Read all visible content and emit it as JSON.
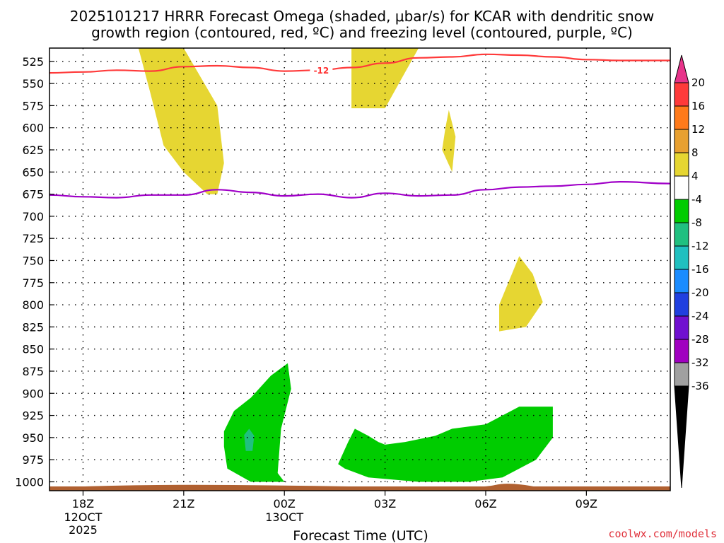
{
  "chart_data": {
    "type": "heatmap",
    "title_line1": "2025101217 HRRR Forecast Omega (shaded, μbar/s) for KCAR with dendritic snow",
    "title_line2": "growth region (contoured, red, ºC) and freezing level (contoured, purple, ºC)",
    "xlabel": "Forecast Time (UTC)",
    "credit": "coolwx.com/models",
    "x_range_hours": [
      -1,
      17.5
    ],
    "y_range_hpa": [
      510,
      1010
    ],
    "y_ticks": [
      "525",
      "550",
      "575",
      "600",
      "625",
      "650",
      "675",
      "700",
      "725",
      "750",
      "775",
      "800",
      "825",
      "850",
      "875",
      "900",
      "925",
      "950",
      "975",
      "1000"
    ],
    "x_ticks": [
      {
        "hour": 0,
        "label": "18Z",
        "sub1": "12OCT",
        "sub2": "2025"
      },
      {
        "hour": 3,
        "label": "21Z",
        "sub1": "",
        "sub2": ""
      },
      {
        "hour": 6,
        "label": "00Z",
        "sub1": "13OCT",
        "sub2": ""
      },
      {
        "hour": 9,
        "label": "03Z",
        "sub1": "",
        "sub2": ""
      },
      {
        "hour": 12,
        "label": "06Z",
        "sub1": "",
        "sub2": ""
      },
      {
        "hour": 15,
        "label": "09Z",
        "sub1": "",
        "sub2": ""
      }
    ],
    "colorbar": {
      "labels": [
        "20",
        "16",
        "12",
        "8",
        "4",
        "-4",
        "-8",
        "-12",
        "-16",
        "-20",
        "-24",
        "-28",
        "-32",
        "-36"
      ],
      "colors": [
        "#e8338a",
        "#ff3a3a",
        "#ff7a1a",
        "#e8a030",
        "#e6d632",
        "#ffffff",
        "#00cc00",
        "#20c080",
        "#20c0c0",
        "#1a8cff",
        "#2040e0",
        "#7010d0",
        "#a000c0",
        "#a0a0a0",
        "#000000"
      ]
    },
    "omega_areas": [
      {
        "name": "yellow-area-1",
        "color": "#e6d632",
        "points": [
          [
            1.65,
            510
          ],
          [
            3.0,
            510
          ],
          [
            4.0,
            575
          ],
          [
            4.2,
            640
          ],
          [
            4.0,
            675
          ],
          [
            3.7,
            675
          ],
          [
            3.0,
            650
          ],
          [
            2.4,
            620
          ],
          [
            2.0,
            560
          ],
          [
            1.65,
            510
          ]
        ]
      },
      {
        "name": "yellow-area-2",
        "color": "#e6d632",
        "points": [
          [
            8.0,
            510
          ],
          [
            10.0,
            510
          ],
          [
            9.0,
            578
          ],
          [
            8.0,
            578
          ],
          [
            8.0,
            525
          ]
        ]
      },
      {
        "name": "yellow-area-3",
        "color": "#e6d632",
        "points": [
          [
            10.9,
            580
          ],
          [
            11.1,
            610
          ],
          [
            11.0,
            650
          ],
          [
            10.7,
            625
          ],
          [
            10.8,
            600
          ]
        ]
      },
      {
        "name": "yellow-area-4",
        "color": "#e6d632",
        "points": [
          [
            12.4,
            800
          ],
          [
            13.0,
            745
          ],
          [
            13.4,
            765
          ],
          [
            13.7,
            797
          ],
          [
            13.2,
            825
          ],
          [
            12.4,
            830
          ]
        ]
      },
      {
        "name": "green-area-1",
        "color": "#00cc00",
        "points": [
          [
            4.2,
            943
          ],
          [
            4.5,
            920
          ],
          [
            5.0,
            905
          ],
          [
            5.6,
            880
          ],
          [
            6.1,
            866
          ],
          [
            6.2,
            895
          ],
          [
            5.9,
            940
          ],
          [
            5.8,
            990
          ],
          [
            6.0,
            1000
          ],
          [
            5.0,
            1000
          ],
          [
            4.3,
            985
          ],
          [
            4.2,
            960
          ]
        ]
      },
      {
        "name": "teal-area-1",
        "color": "#20c080",
        "points": [
          [
            4.8,
            947
          ],
          [
            4.95,
            940
          ],
          [
            5.1,
            948
          ],
          [
            5.05,
            965
          ],
          [
            4.85,
            965
          ]
        ]
      },
      {
        "name": "green-area-2",
        "color": "#00cc00",
        "points": [
          [
            7.6,
            980
          ],
          [
            7.9,
            955
          ],
          [
            8.1,
            940
          ],
          [
            8.5,
            948
          ],
          [
            8.8,
            955
          ],
          [
            9.0,
            958
          ],
          [
            9.6,
            955
          ],
          [
            10.5,
            948
          ],
          [
            11.0,
            940
          ],
          [
            12.0,
            935
          ],
          [
            13.0,
            915
          ],
          [
            14.0,
            915
          ],
          [
            14.0,
            950
          ],
          [
            13.5,
            975
          ],
          [
            12.5,
            995
          ],
          [
            11.5,
            1000
          ],
          [
            10.0,
            1000
          ],
          [
            8.5,
            995
          ],
          [
            7.8,
            985
          ]
        ]
      }
    ],
    "contour_12C": {
      "label": "-12",
      "points": [
        [
          -1,
          538
        ],
        [
          0,
          537
        ],
        [
          1,
          535
        ],
        [
          2,
          536
        ],
        [
          3,
          531
        ],
        [
          4,
          530
        ],
        [
          5,
          532
        ],
        [
          6,
          536
        ],
        [
          7,
          535
        ],
        [
          8,
          532
        ],
        [
          9,
          527
        ],
        [
          10,
          521
        ],
        [
          11,
          520
        ],
        [
          12,
          517
        ],
        [
          13,
          518
        ],
        [
          14,
          520
        ],
        [
          15,
          523
        ],
        [
          16,
          524
        ],
        [
          17.5,
          524
        ]
      ]
    },
    "freezing_level": {
      "points": [
        [
          -1,
          676
        ],
        [
          0,
          678
        ],
        [
          1,
          679
        ],
        [
          2,
          676
        ],
        [
          3,
          676
        ],
        [
          4,
          670
        ],
        [
          5,
          673
        ],
        [
          6,
          677
        ],
        [
          7,
          675
        ],
        [
          8,
          679
        ],
        [
          9,
          674
        ],
        [
          10,
          677
        ],
        [
          11,
          676
        ],
        [
          12,
          670
        ],
        [
          13,
          667
        ],
        [
          14,
          666
        ],
        [
          15,
          664
        ],
        [
          16,
          661
        ],
        [
          17.5,
          663
        ]
      ]
    }
  }
}
